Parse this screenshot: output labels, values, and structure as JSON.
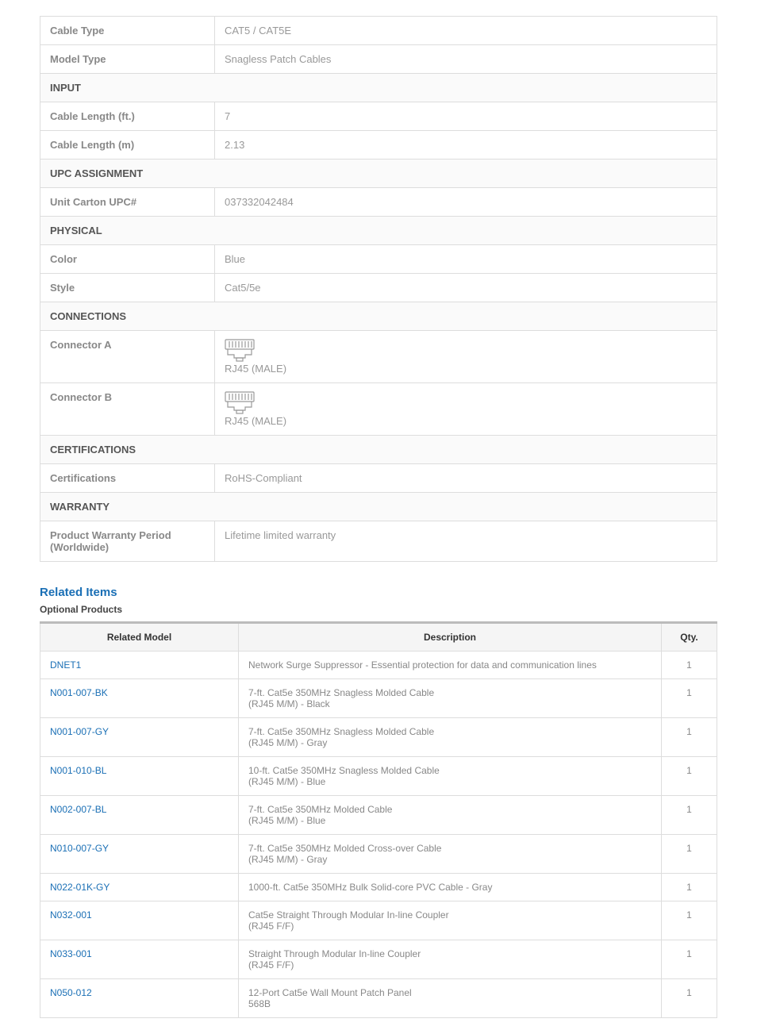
{
  "specs": [
    {
      "type": "row",
      "label": "Cable Type",
      "value": "CAT5 / CAT5E"
    },
    {
      "type": "row",
      "label": "Model Type",
      "value": "Snagless Patch Cables"
    },
    {
      "type": "section",
      "label": "INPUT"
    },
    {
      "type": "row",
      "label": "Cable Length (ft.)",
      "value": "7"
    },
    {
      "type": "row",
      "label": "Cable Length (m)",
      "value": "2.13"
    },
    {
      "type": "section",
      "label": "UPC ASSIGNMENT"
    },
    {
      "type": "row",
      "label": "Unit Carton UPC#",
      "value": "037332042484"
    },
    {
      "type": "section",
      "label": "PHYSICAL"
    },
    {
      "type": "row",
      "label": "Color",
      "value": "Blue"
    },
    {
      "type": "row",
      "label": "Style",
      "value": "Cat5/5e"
    },
    {
      "type": "section",
      "label": "CONNECTIONS"
    },
    {
      "type": "connector",
      "label": "Connector A",
      "value": "RJ45 (MALE)"
    },
    {
      "type": "connector",
      "label": "Connector B",
      "value": "RJ45 (MALE)"
    },
    {
      "type": "section",
      "label": "CERTIFICATIONS"
    },
    {
      "type": "row",
      "label": "Certifications",
      "value": "RoHS-Compliant"
    },
    {
      "type": "section",
      "label": "WARRANTY"
    },
    {
      "type": "row",
      "label": "Product Warranty Period (Worldwide)",
      "value": "Lifetime limited warranty"
    }
  ],
  "related": {
    "title": "Related Items",
    "subtitle": "Optional Products",
    "headers": {
      "model": "Related Model",
      "desc": "Description",
      "qty": "Qty."
    },
    "items": [
      {
        "model": "DNET1",
        "desc": "Network Surge Suppressor - Essential protection for data and communication lines",
        "qty": "1"
      },
      {
        "model": "N001-007-BK",
        "desc": "7-ft. Cat5e 350MHz Snagless Molded Cable\n(RJ45 M/M) - Black",
        "qty": "1"
      },
      {
        "model": "N001-007-GY",
        "desc": "7-ft. Cat5e 350MHz Snagless Molded Cable\n(RJ45 M/M) - Gray",
        "qty": "1"
      },
      {
        "model": "N001-010-BL",
        "desc": "10-ft. Cat5e 350MHz Snagless Molded Cable\n(RJ45 M/M) - Blue",
        "qty": "1"
      },
      {
        "model": "N002-007-BL",
        "desc": "7-ft. Cat5e 350MHz Molded Cable\n(RJ45 M/M) - Blue",
        "qty": "1"
      },
      {
        "model": "N010-007-GY",
        "desc": "7-ft. Cat5e 350MHz Molded Cross-over Cable\n(RJ45 M/M) - Gray",
        "qty": "1"
      },
      {
        "model": "N022-01K-GY",
        "desc": "1000-ft. Cat5e 350MHz Bulk Solid-core PVC Cable - Gray",
        "qty": "1"
      },
      {
        "model": "N032-001",
        "desc": "Cat5e Straight Through Modular In-line Coupler\n(RJ45 F/F)",
        "qty": "1"
      },
      {
        "model": "N033-001",
        "desc": "Straight Through Modular In-line Coupler\n(RJ45 F/F)",
        "qty": "1"
      },
      {
        "model": "N050-012",
        "desc": "12-Port Cat5e Wall Mount Patch Panel\n568B",
        "qty": "1"
      }
    ]
  },
  "colors": {
    "link": "#1a6fb5",
    "border": "#dddddd",
    "section_bg": "#fafafa",
    "muted": "#999999"
  }
}
